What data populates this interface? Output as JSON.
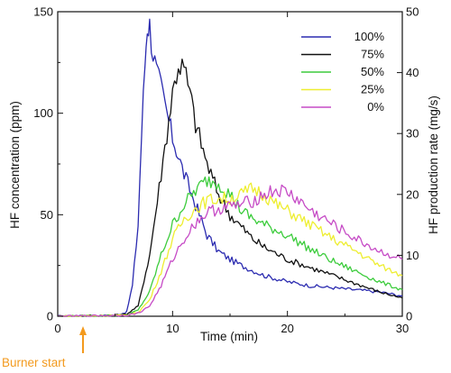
{
  "chart_data": {
    "type": "line",
    "xlabel": "Time (min)",
    "ylabel": "HF concentration (ppm)",
    "y2label": "HF production rate (mg/s)",
    "xlim": [
      0,
      30
    ],
    "ylim": [
      0,
      150
    ],
    "y2lim": [
      0,
      50
    ],
    "xticks": [
      0,
      10,
      20,
      30
    ],
    "yticks": [
      0,
      50,
      100,
      150
    ],
    "y2ticks": [
      0,
      10,
      20,
      30,
      40,
      50
    ],
    "grid": false,
    "legend_position": "top-right",
    "annotation": {
      "text": "Burner start",
      "x": 2.2,
      "color": "#f39a1e"
    },
    "series": [
      {
        "name": "100%",
        "color": "#2b2bb0",
        "x": [
          0,
          5,
          6,
          6.5,
          7,
          7.3,
          7.6,
          7.8,
          8.0,
          8.3,
          8.6,
          9.0,
          9.5,
          10,
          11,
          12,
          13,
          14,
          15,
          16,
          18,
          20,
          22,
          24,
          26,
          28,
          30
        ],
        "y": [
          0,
          0.5,
          2,
          15,
          45,
          90,
          125,
          144,
          143,
          130,
          120,
          112,
          100,
          88,
          70,
          55,
          40,
          32,
          28,
          25,
          20,
          17,
          15,
          14,
          13,
          12,
          10
        ]
      },
      {
        "name": "75%",
        "color": "#111111",
        "x": [
          0,
          5,
          6,
          7,
          8,
          9,
          10,
          10.5,
          11,
          11.5,
          12,
          13,
          14,
          15,
          16,
          17,
          18,
          20,
          22,
          24,
          26,
          28,
          30
        ],
        "y": [
          0,
          0.5,
          1,
          5,
          30,
          70,
          110,
          124,
          122,
          110,
          95,
          75,
          60,
          50,
          44,
          38,
          34,
          28,
          24,
          20,
          16,
          12,
          9
        ]
      },
      {
        "name": "50%",
        "color": "#3ccc3c",
        "x": [
          0,
          6,
          7,
          8,
          9,
          10,
          11,
          12,
          13,
          14,
          15,
          16,
          17,
          18,
          20,
          22,
          24,
          26,
          28,
          30
        ],
        "y": [
          0,
          0.5,
          3,
          12,
          30,
          45,
          55,
          62,
          67,
          66,
          60,
          52,
          48,
          45,
          40,
          33,
          27,
          22,
          17,
          13
        ]
      },
      {
        "name": "25%",
        "color": "#eeee30",
        "x": [
          0,
          6,
          7,
          8,
          9,
          10,
          11,
          12,
          13,
          14,
          15,
          16,
          17,
          18,
          19,
          20,
          22,
          24,
          26,
          28,
          30
        ],
        "y": [
          0,
          0.5,
          2,
          8,
          22,
          38,
          48,
          53,
          57,
          58,
          58,
          60,
          63,
          60,
          55,
          52,
          45,
          38,
          32,
          25,
          20
        ]
      },
      {
        "name": "0%",
        "color": "#c64bc6",
        "x": [
          0,
          6,
          7,
          8,
          9,
          10,
          11,
          12,
          13,
          14,
          15,
          16,
          17,
          18,
          19,
          20,
          21,
          22,
          24,
          26,
          28,
          30
        ],
        "y": [
          0,
          0.5,
          1.5,
          5,
          15,
          28,
          38,
          46,
          51,
          53,
          54,
          55,
          57,
          60,
          62,
          61,
          57,
          52,
          45,
          38,
          32,
          28
        ]
      }
    ]
  }
}
